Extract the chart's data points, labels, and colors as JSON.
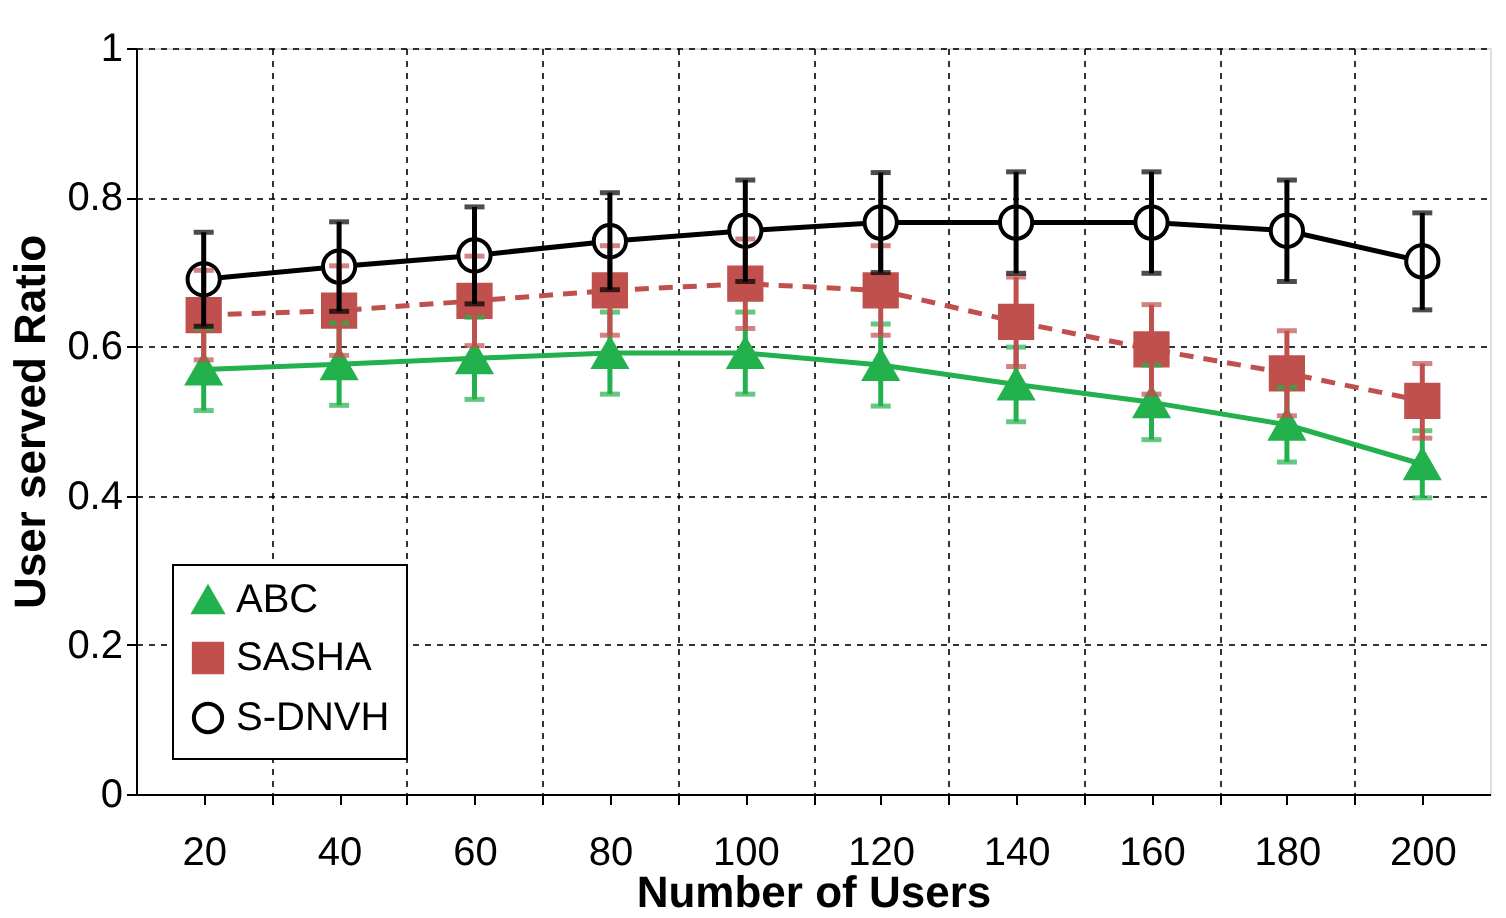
{
  "chart_data": {
    "type": "line",
    "xlabel": "Number of Users",
    "ylabel": "User served Ratio",
    "categories": [
      "20",
      "40",
      "60",
      "80",
      "100",
      "120",
      "140",
      "160",
      "180",
      "200"
    ],
    "ylim": [
      0,
      1
    ],
    "yticks": [
      0,
      0.2,
      0.4,
      0.6,
      0.8,
      1
    ],
    "grid": true,
    "legend": "bottom left",
    "series": [
      {
        "name": "ABC",
        "color": "#22b14c",
        "marker": "triangle",
        "line_style": "solid",
        "values": [
          0.569,
          0.576,
          0.584,
          0.591,
          0.591,
          0.575,
          0.549,
          0.525,
          0.495,
          0.442
        ],
        "errors": [
          0.055,
          0.055,
          0.055,
          0.055,
          0.055,
          0.055,
          0.05,
          0.05,
          0.05,
          0.045
        ]
      },
      {
        "name": "SASHA",
        "color": "#c0504d",
        "marker": "square",
        "line_style": "dashed",
        "values": [
          0.642,
          0.648,
          0.661,
          0.675,
          0.684,
          0.675,
          0.633,
          0.596,
          0.564,
          0.527
        ],
        "errors": [
          0.06,
          0.06,
          0.06,
          0.06,
          0.06,
          0.06,
          0.06,
          0.06,
          0.057,
          0.05
        ]
      },
      {
        "name": "S-DNVH",
        "color": "#000000",
        "marker": "circle",
        "line_style": "solid",
        "values": [
          0.69,
          0.707,
          0.722,
          0.741,
          0.755,
          0.766,
          0.766,
          0.766,
          0.755,
          0.714
        ],
        "errors": [
          0.063,
          0.06,
          0.065,
          0.065,
          0.068,
          0.067,
          0.068,
          0.068,
          0.068,
          0.065
        ]
      }
    ]
  }
}
